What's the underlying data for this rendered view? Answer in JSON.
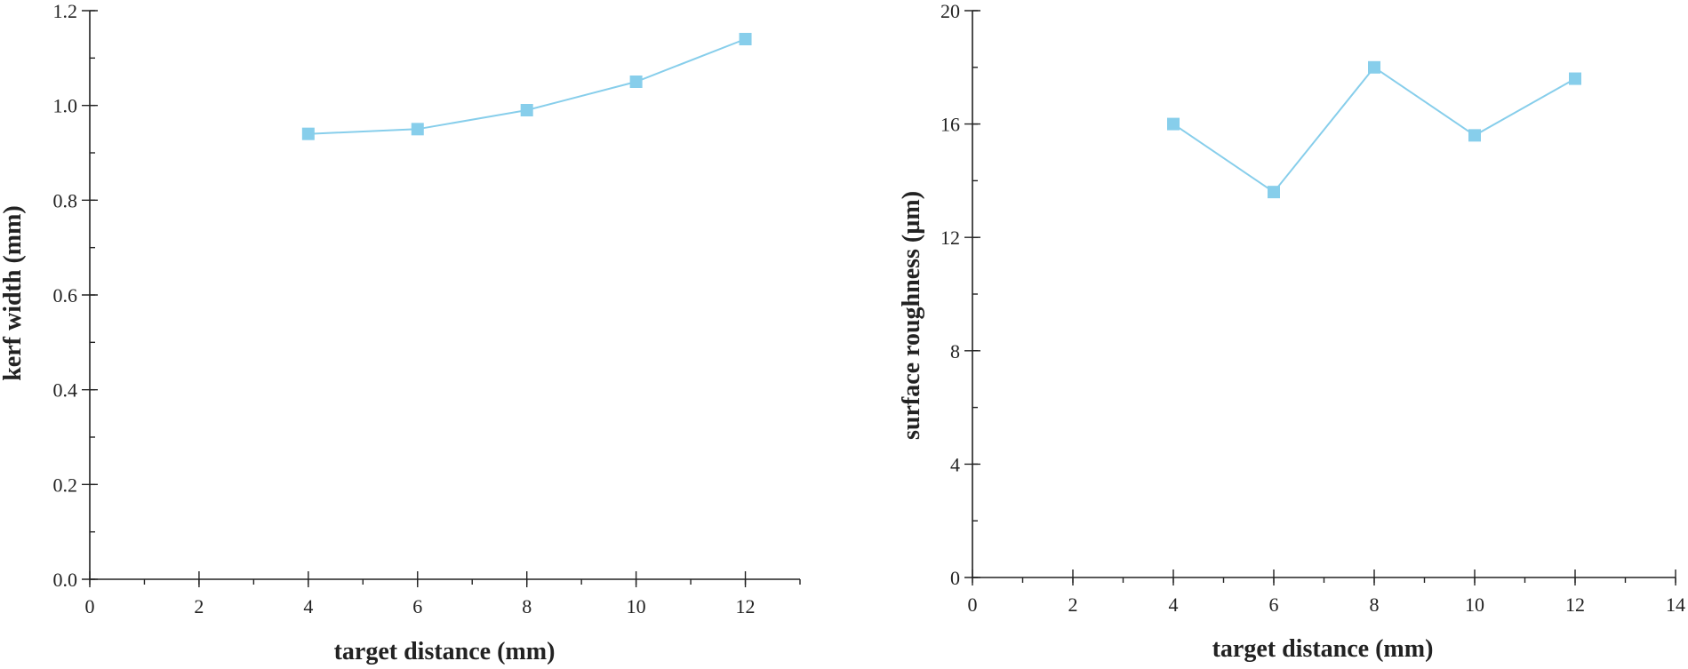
{
  "colors": {
    "series": "#87ceeb",
    "axis": "#222222"
  },
  "chart_data": [
    {
      "type": "line",
      "title": "",
      "xlabel": "target distance (mm)",
      "ylabel": "kerf width (mm)",
      "xlim": [
        0,
        13
      ],
      "ylim": [
        0,
        1.2
      ],
      "x_ticks": [
        0,
        2,
        4,
        6,
        8,
        10,
        12
      ],
      "x_tick_labels": [
        "0",
        "2",
        "4",
        "6",
        "8",
        "10",
        "12"
      ],
      "x_minor_step": 1,
      "y_ticks": [
        0,
        0.2,
        0.4,
        0.6,
        0.8,
        1.0,
        1.2
      ],
      "y_tick_labels": [
        "0.0",
        "0.2",
        "0.4",
        "0.6",
        "0.8",
        "1.0",
        "1.2"
      ],
      "y_minor_step": 0.1,
      "grid": false,
      "series": [
        {
          "name": "kerf width",
          "marker": "square",
          "x": [
            4,
            6,
            8,
            10,
            12
          ],
          "values": [
            0.94,
            0.95,
            0.99,
            1.05,
            1.14
          ]
        }
      ]
    },
    {
      "type": "line",
      "title": "",
      "xlabel": "target distance (mm)",
      "ylabel": "surface roughness (µm)",
      "xlim": [
        0,
        14
      ],
      "ylim": [
        0,
        20
      ],
      "x_ticks": [
        0,
        2,
        4,
        6,
        8,
        10,
        12,
        14
      ],
      "x_tick_labels": [
        "0",
        "2",
        "4",
        "6",
        "8",
        "10",
        "12",
        "14"
      ],
      "x_minor_step": 1,
      "y_ticks": [
        0,
        4,
        8,
        12,
        16,
        20
      ],
      "y_tick_labels": [
        "0",
        "4",
        "8",
        "12",
        "16",
        "20"
      ],
      "y_minor_step": 2,
      "grid": false,
      "series": [
        {
          "name": "surface roughness",
          "marker": "square",
          "x": [
            4,
            6,
            8,
            10,
            12
          ],
          "values": [
            16.0,
            13.6,
            18.0,
            15.6,
            17.6
          ]
        }
      ]
    }
  ]
}
